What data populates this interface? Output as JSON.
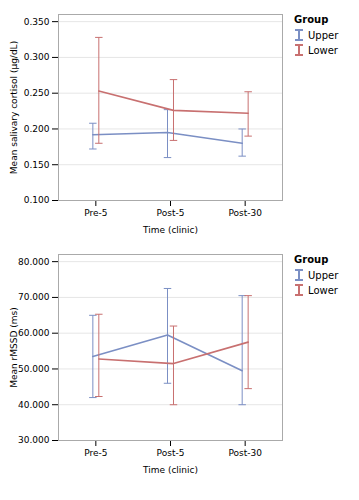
{
  "chart_data": [
    {
      "type": "line",
      "xlabel": "Time (clinic)",
      "ylabel": "Mean salivary cortisol (µg/dL)",
      "categories": [
        "Pre-5",
        "Post-5",
        "Post-30"
      ],
      "series": [
        {
          "name": "Upper",
          "color": "#7b8fc4",
          "values": [
            0.192,
            0.195,
            0.18
          ],
          "upper_err": [
            0.016,
            0.032,
            0.02
          ],
          "lower_err": [
            0.02,
            0.035,
            0.018
          ]
        },
        {
          "name": "Lower",
          "color": "#c87070",
          "values": [
            0.253,
            0.226,
            0.222
          ],
          "upper_err": [
            0.075,
            0.043,
            0.03
          ],
          "lower_err": [
            0.073,
            0.042,
            0.032
          ]
        }
      ],
      "ylim": [
        0.1,
        0.36
      ],
      "yticks": [
        {
          "value": 0.1,
          "label": "0.100"
        },
        {
          "value": 0.15,
          "label": "0.150"
        },
        {
          "value": 0.2,
          "label": "0.200"
        },
        {
          "value": 0.25,
          "label": "0.250"
        },
        {
          "value": 0.3,
          "label": "0.300"
        },
        {
          "value": 0.35,
          "label": "0.350"
        }
      ],
      "grid": true,
      "legend": "right",
      "legend_title": "Group"
    },
    {
      "type": "line",
      "xlabel": "Time (clinic)",
      "ylabel": "Mean rMSSD (ms)",
      "categories": [
        "Pre-5",
        "Post-5",
        "Post-30"
      ],
      "series": [
        {
          "name": "Upper",
          "color": "#7b8fc4",
          "values": [
            53.5,
            59.5,
            49.5
          ],
          "upper_err": [
            11.5,
            13.0,
            21.0
          ],
          "lower_err": [
            11.5,
            13.5,
            9.5
          ]
        },
        {
          "name": "Lower",
          "color": "#c87070",
          "values": [
            52.8,
            51.5,
            57.5
          ],
          "upper_err": [
            12.5,
            10.5,
            13.0
          ],
          "lower_err": [
            10.5,
            11.5,
            13.0
          ]
        }
      ],
      "ylim": [
        30,
        82
      ],
      "yticks": [
        {
          "value": 30,
          "label": "30.000"
        },
        {
          "value": 40,
          "label": "40.000"
        },
        {
          "value": 50,
          "label": "50.000"
        },
        {
          "value": 60,
          "label": "60.000"
        },
        {
          "value": 70,
          "label": "70.000"
        },
        {
          "value": 80,
          "label": "80.000"
        }
      ],
      "grid": true,
      "legend": "right",
      "legend_title": "Group"
    }
  ]
}
